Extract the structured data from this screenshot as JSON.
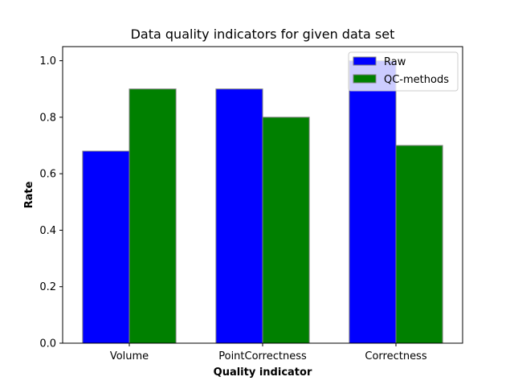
{
  "chart_data": {
    "type": "bar",
    "title": "Data quality indicators for given data set",
    "xlabel": "Quality indicator",
    "ylabel": "Rate",
    "categories": [
      "Volume",
      "PointCorrectness",
      "Correctness"
    ],
    "series": [
      {
        "name": "Raw",
        "values": [
          0.68,
          0.9,
          1.0
        ],
        "color": "#0000ff"
      },
      {
        "name": "QC-methods",
        "values": [
          0.9,
          0.8,
          0.7
        ],
        "color": "#008000"
      }
    ],
    "ylim": [
      0,
      1.05
    ],
    "yticks": [
      0.0,
      0.2,
      0.4,
      0.6,
      0.8,
      1.0
    ],
    "ytick_labels": [
      "0.0",
      "0.2",
      "0.4",
      "0.6",
      "0.8",
      "1.0"
    ],
    "bar_edge_color": "#808080",
    "grid": false,
    "legend_position": "top-right"
  }
}
